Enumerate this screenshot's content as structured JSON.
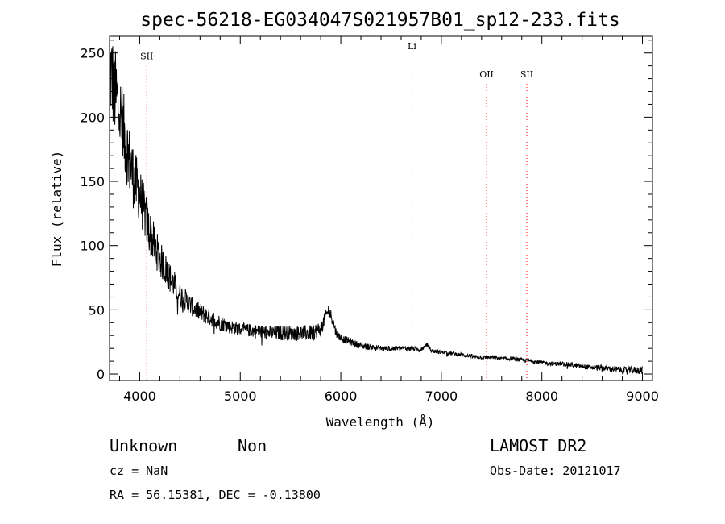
{
  "chart_data": {
    "type": "line",
    "title": "spec-56218-EG034047S021957B01_sp12-233.fits",
    "xlabel": "Wavelength (Å)",
    "ylabel": "Flux (relative)",
    "xlim": [
      3700,
      9100
    ],
    "ylim": [
      -5,
      263
    ],
    "x_ticks": [
      4000,
      5000,
      6000,
      7000,
      8000,
      9000
    ],
    "y_ticks": [
      0,
      50,
      100,
      150,
      200,
      250
    ],
    "grid": false,
    "series_color": "#000000",
    "line_color": "#ff0000",
    "spectral_lines": [
      {
        "label": "SII",
        "x": 4070,
        "label_y": 245
      },
      {
        "label": "Li",
        "x": 6708,
        "label_y": 253
      },
      {
        "label": "OII",
        "x": 7450,
        "label_y": 231
      },
      {
        "label": "SII",
        "x": 7850,
        "label_y": 231
      }
    ],
    "spectrum_anchors": {
      "x": [
        3700,
        3750,
        3800,
        3850,
        3900,
        3950,
        4000,
        4100,
        4200,
        4300,
        4400,
        4500,
        4600,
        4700,
        4800,
        4900,
        5000,
        5100,
        5200,
        5300,
        5400,
        5500,
        5600,
        5700,
        5800,
        5850,
        5880,
        5920,
        5950,
        6000,
        6100,
        6200,
        6300,
        6400,
        6500,
        6600,
        6700,
        6800,
        6860,
        6900,
        7000,
        7100,
        7200,
        7300,
        7400,
        7500,
        7600,
        7700,
        7800,
        7900,
        8000,
        8100,
        8200,
        8300,
        8400,
        8500,
        8600,
        8700,
        8800,
        8900,
        9000
      ],
      "y": [
        240,
        220,
        205,
        185,
        165,
        150,
        140,
        110,
        90,
        75,
        62,
        54,
        48,
        44,
        40,
        37,
        35,
        34,
        33,
        32,
        32,
        32,
        32,
        32,
        35,
        45,
        50,
        42,
        33,
        28,
        25,
        22,
        21,
        20,
        20,
        20,
        20,
        19,
        23,
        18,
        17,
        16,
        15,
        14,
        13,
        13,
        12,
        12,
        11,
        10,
        9,
        8,
        8,
        7,
        6,
        5,
        5,
        4,
        3,
        3,
        3
      ]
    },
    "noise_envelope": {
      "x": [
        3700,
        3850,
        4000,
        4200,
        4500,
        5000,
        5500,
        5800,
        6000,
        6500,
        7000,
        8000,
        8500,
        9000
      ],
      "amp": [
        40,
        30,
        22,
        14,
        8,
        5,
        6,
        6,
        3,
        2,
        1.5,
        1.5,
        2,
        3
      ]
    }
  },
  "info": {
    "class": "Unknown",
    "subclass": "Non",
    "cz": "cz = NaN",
    "coords": "RA =  56.15381, DEC =  -0.13800",
    "survey": "LAMOST DR2",
    "obs_date": "Obs-Date: 20121017"
  }
}
